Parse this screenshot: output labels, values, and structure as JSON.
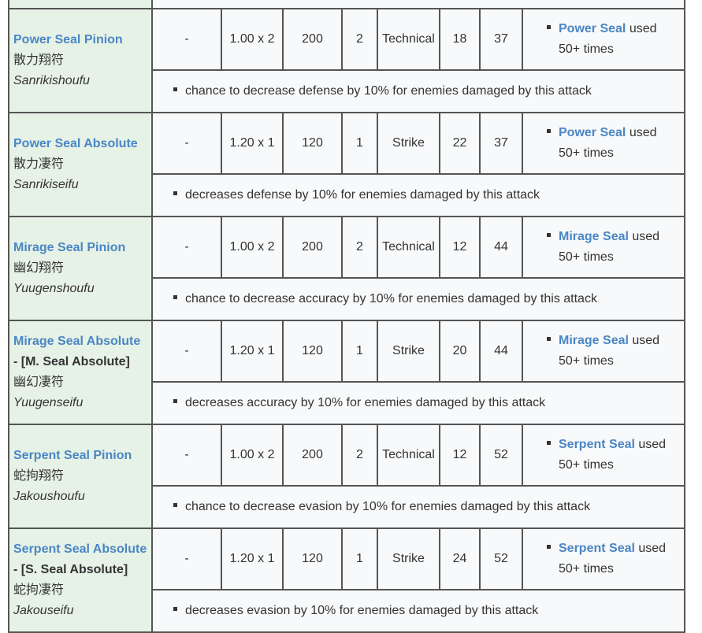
{
  "rows": [
    {
      "name": "Power Seal Pinion",
      "alias": "",
      "japanese": "散力翔符",
      "romaji": "Sanrikishoufu",
      "col1": "-",
      "power": "1.00 x 2",
      "accuracy": "200",
      "hits": "2",
      "type": "Technical",
      "cost": "18",
      "level": "37",
      "unlock_link": "Power Seal",
      "unlock_text": " used 50+ times",
      "effect": "chance to decrease defense by 10% for enemies damaged by this attack"
    },
    {
      "name": "Power Seal Absolute",
      "alias": "",
      "japanese": "散力凄符",
      "romaji": "Sanrikiseifu",
      "col1": "-",
      "power": "1.20 x 1",
      "accuracy": "120",
      "hits": "1",
      "type": "Strike",
      "cost": "22",
      "level": "37",
      "unlock_link": "Power Seal",
      "unlock_text": " used 50+ times",
      "effect": "decreases defense by 10% for enemies damaged by this attack"
    },
    {
      "name": "Mirage Seal Pinion",
      "alias": "",
      "japanese": "幽幻翔符",
      "romaji": "Yuugenshoufu",
      "col1": "-",
      "power": "1.00 x 2",
      "accuracy": "200",
      "hits": "2",
      "type": "Technical",
      "cost": "12",
      "level": "44",
      "unlock_link": "Mirage Seal",
      "unlock_text": " used 50+ times",
      "effect": "chance to decrease accuracy by 10% for enemies damaged by this attack"
    },
    {
      "name": "Mirage Seal Absolute",
      "alias": "- [M. Seal Absolute]",
      "japanese": "幽幻凄符",
      "romaji": "Yuugenseifu",
      "col1": "-",
      "power": "1.20 x 1",
      "accuracy": "120",
      "hits": "1",
      "type": "Strike",
      "cost": "20",
      "level": "44",
      "unlock_link": "Mirage Seal",
      "unlock_text": " used 50+ times",
      "effect": "decreases accuracy by 10% for enemies damaged by this attack"
    },
    {
      "name": "Serpent Seal Pinion",
      "alias": "",
      "japanese": "蛇拘翔符",
      "romaji": "Jakoushoufu",
      "col1": "-",
      "power": "1.00 x 2",
      "accuracy": "200",
      "hits": "2",
      "type": "Technical",
      "cost": "12",
      "level": "52",
      "unlock_link": "Serpent Seal",
      "unlock_text": " used 50+ times",
      "effect": "chance to decrease evasion by 10% for enemies damaged by this attack"
    },
    {
      "name": "Serpent Seal Absolute",
      "alias": "- [S. Seal Absolute]",
      "japanese": "蛇拘凄符",
      "romaji": "Jakouseifu",
      "col1": "-",
      "power": "1.20 x 1",
      "accuracy": "120",
      "hits": "1",
      "type": "Strike",
      "cost": "24",
      "level": "52",
      "unlock_link": "Serpent Seal",
      "unlock_text": " used 50+ times",
      "effect": "decreases evasion by 10% for enemies damaged by this attack"
    }
  ]
}
